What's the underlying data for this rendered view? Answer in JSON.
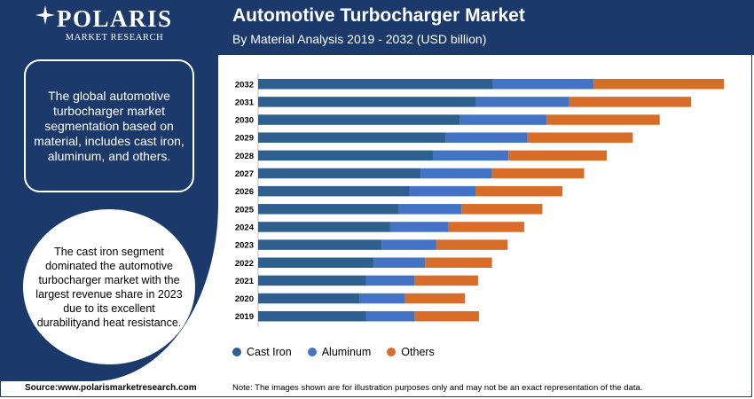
{
  "logo": {
    "name": "POLARIS",
    "subtitle": "MARKET RESEARCH"
  },
  "summary_text": "The global automotive turbocharger market segmentation based on material, includes cast iron, aluminum, and others.",
  "circle_text": "The cast iron segment dominated the automotive turbocharger market with the largest revenue share in 2023 due to its excellent durabilityand heat resistance.",
  "source": "Source:www.polarismarketresearch.com",
  "note": "Note: The images shown are for illustration purposes only and may not be an exact representation of the data.",
  "colors": {
    "cast_iron": "#2f5f8f",
    "aluminum": "#4472c4",
    "others": "#d86d2a",
    "brand": "#1b3a6b"
  },
  "chart_data": {
    "type": "bar",
    "orientation": "horizontal",
    "stacked": true,
    "title": "Automotive Turbocharger Market",
    "subtitle": "By Material Analysis 2019 - 2032 (USD billion)",
    "categories": [
      "2032",
      "2031",
      "2030",
      "2029",
      "2028",
      "2027",
      "2026",
      "2025",
      "2024",
      "2023",
      "2022",
      "2021",
      "2020",
      "2019"
    ],
    "series": [
      {
        "name": "Cast Iron",
        "color": "#2f5f8f",
        "values": [
          27.0,
          25.0,
          23.2,
          21.6,
          20.1,
          18.7,
          17.4,
          16.2,
          15.2,
          14.2,
          13.3,
          12.4,
          11.7,
          12.4
        ]
      },
      {
        "name": "Aluminum",
        "color": "#4472c4",
        "values": [
          11.6,
          10.8,
          10.0,
          9.4,
          8.7,
          8.2,
          7.6,
          7.2,
          6.7,
          6.3,
          5.9,
          5.6,
          5.2,
          5.6
        ]
      },
      {
        "name": "Others",
        "color": "#d86d2a",
        "values": [
          15.0,
          14.0,
          13.0,
          12.1,
          11.3,
          10.6,
          10.0,
          9.3,
          8.7,
          8.2,
          7.7,
          7.3,
          6.9,
          7.4
        ]
      }
    ],
    "legend_position": "bottom-left",
    "grid": false
  }
}
